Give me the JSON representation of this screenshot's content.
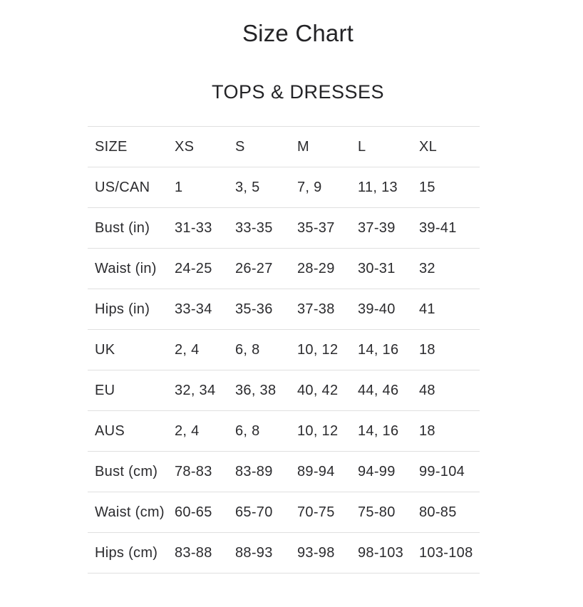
{
  "page_title": "Size Chart",
  "section_title": "TOPS & DRESSES",
  "colors": {
    "background": "#ffffff",
    "text": "#2b2b2e",
    "divider": "#e0e0e0"
  },
  "chart_data": {
    "type": "table",
    "title": "Size Chart",
    "subtitle": "TOPS & DRESSES",
    "columns": [
      "SIZE",
      "XS",
      "S",
      "M",
      "L",
      "XL"
    ],
    "rows": [
      {
        "label": "US/CAN",
        "values": [
          "1",
          "3, 5",
          "7, 9",
          "11, 13",
          "15"
        ]
      },
      {
        "label": "Bust (in)",
        "values": [
          "31-33",
          "33-35",
          "35-37",
          "37-39",
          "39-41"
        ]
      },
      {
        "label": "Waist (in)",
        "values": [
          "24-25",
          "26-27",
          "28-29",
          "30-31",
          "32"
        ]
      },
      {
        "label": "Hips (in)",
        "values": [
          "33-34",
          "35-36",
          "37-38",
          "39-40",
          "41"
        ]
      },
      {
        "label": "UK",
        "values": [
          "2, 4",
          "6, 8",
          "10, 12",
          "14, 16",
          "18"
        ]
      },
      {
        "label": "EU",
        "values": [
          "32, 34",
          "36, 38",
          "40, 42",
          "44, 46",
          "48"
        ]
      },
      {
        "label": "AUS",
        "values": [
          "2, 4",
          "6, 8",
          "10, 12",
          "14, 16",
          "18"
        ]
      },
      {
        "label": "Bust (cm)",
        "values": [
          "78-83",
          "83-89",
          "89-94",
          "94-99",
          "99-104"
        ]
      },
      {
        "label": "Waist (cm)",
        "values": [
          "60-65",
          "65-70",
          "70-75",
          "75-80",
          "80-85"
        ]
      },
      {
        "label": "Hips (cm)",
        "values": [
          "83-88",
          "88-93",
          "93-98",
          "98-103",
          "103-108"
        ]
      }
    ]
  }
}
